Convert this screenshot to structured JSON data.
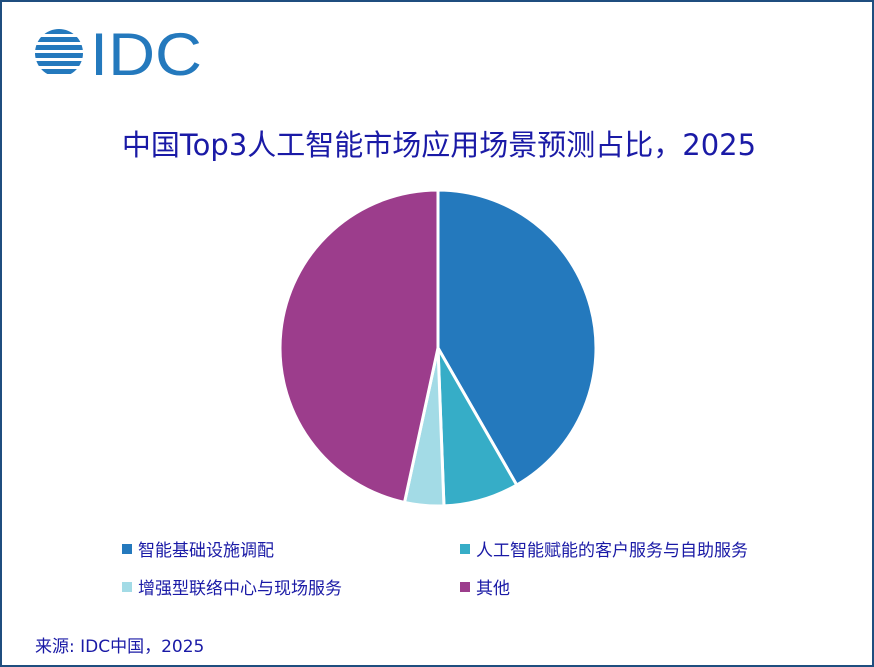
{
  "logo": {
    "text": "IDC",
    "color": "#2479bd"
  },
  "title": "中国Top3人工智能市场应用场景预测占比，2025",
  "legend": {
    "items": [
      {
        "label": "智能基础设施调配",
        "color": "#2479bd"
      },
      {
        "label": "人工智能赋能的客户服务与自助服务",
        "color": "#36adc7"
      },
      {
        "label": "增强型联络中心与现场服务",
        "color": "#a3dbe6"
      },
      {
        "label": "其他",
        "color": "#9c3d8c"
      }
    ]
  },
  "source": "来源: IDC中国，2025",
  "colors": {
    "title_text": "#1a1aa6",
    "frame_border": "#1f4e7f"
  },
  "chart_data": {
    "type": "pie",
    "title": "中国Top3人工智能市场应用场景预测占比，2025",
    "categories": [
      "智能基础设施调配",
      "人工智能赋能的客户服务与自助服务",
      "增强型联络中心与现场服务",
      "其他"
    ],
    "values": [
      41.7,
      7.7,
      4.0,
      46.6
    ],
    "unit": "%",
    "colors": [
      "#2479bd",
      "#36adc7",
      "#a3dbe6",
      "#9c3d8c"
    ],
    "start_angle_deg": 0,
    "direction": "clockwise",
    "legend_position": "bottom",
    "data_labels": false,
    "source": "来源: IDC中国，2025"
  }
}
